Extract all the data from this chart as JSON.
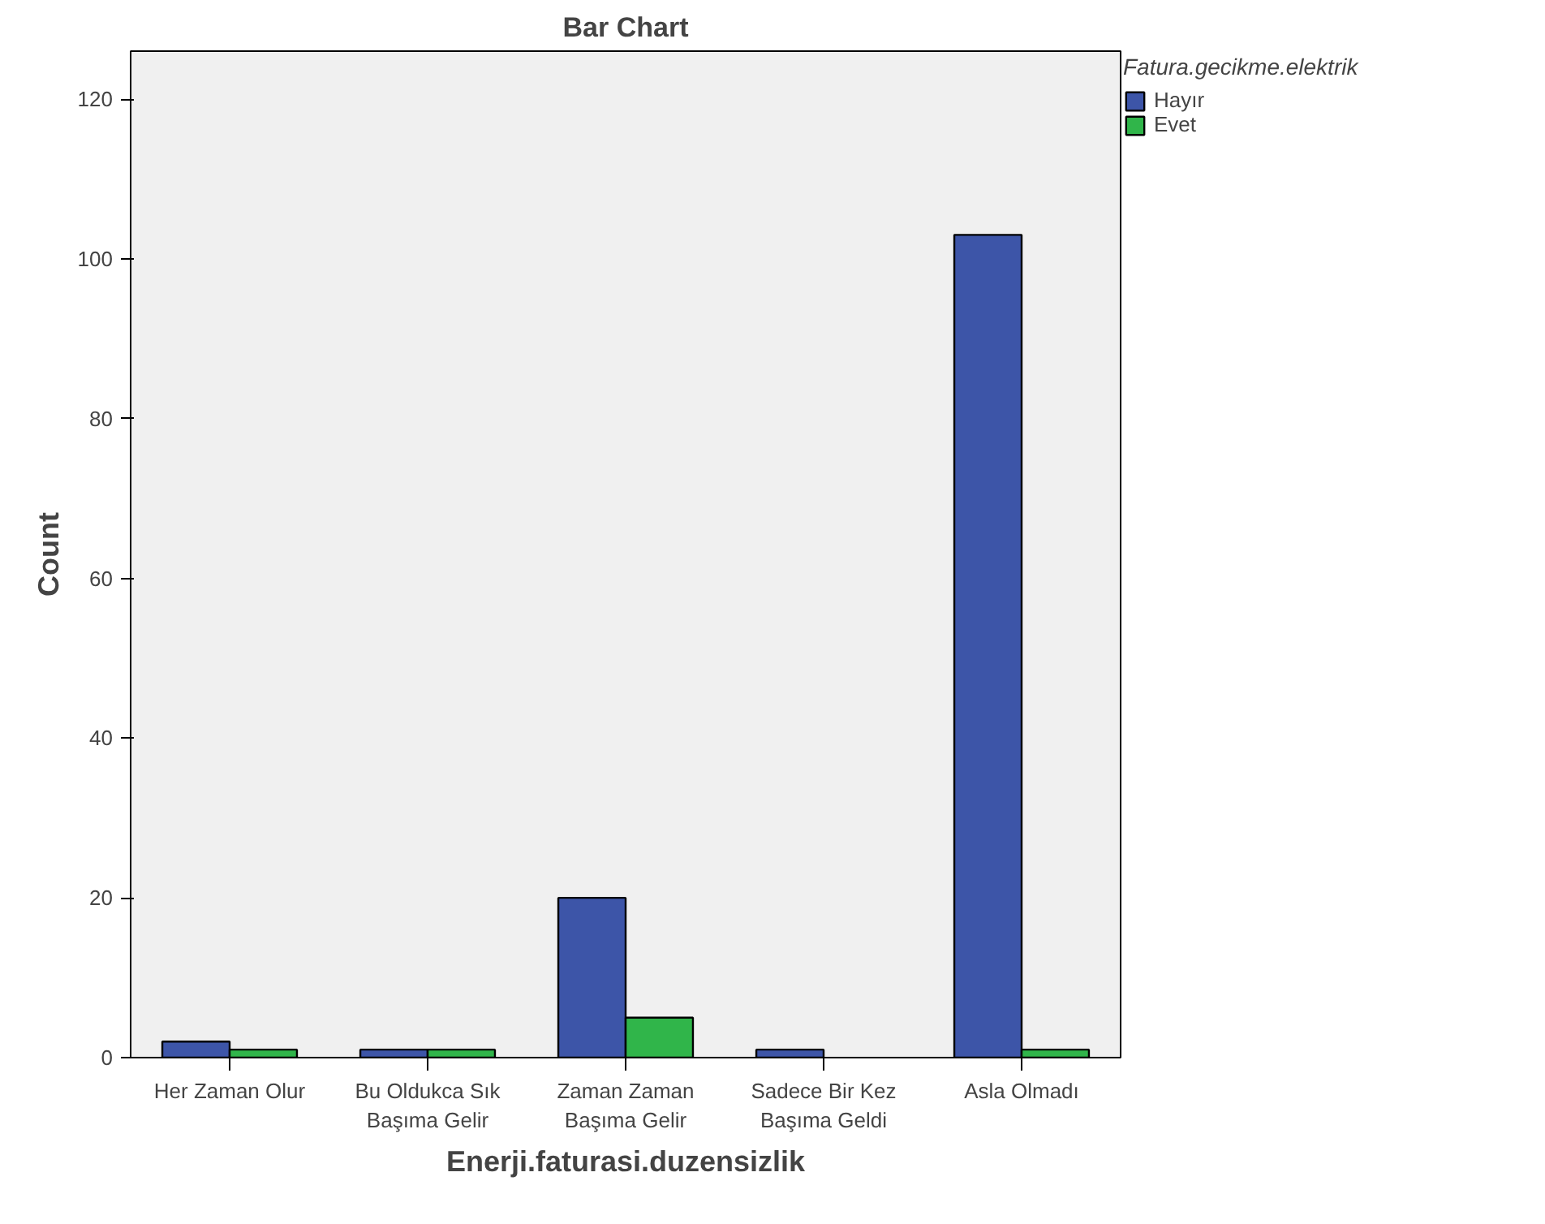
{
  "chart_data": {
    "type": "bar",
    "title": "Bar Chart",
    "xlabel": "Enerji.faturasi.duzensizlik",
    "ylabel": "Count",
    "legend_title": "Fatura.gecikme.elektrik",
    "categories": [
      "Her Zaman Olur",
      "Bu Oldukca Sık\nBaşıma Gelir",
      "Zaman Zaman\nBaşıma Gelir",
      "Sadece Bir Kez\nBaşıma Geldi",
      "Asla Olmadı"
    ],
    "series": [
      {
        "name": "Hayır",
        "color": "#3d55a8",
        "values": [
          2,
          1,
          20,
          1,
          103
        ]
      },
      {
        "name": "Evet",
        "color": "#30b54a",
        "values": [
          1,
          1,
          5,
          null,
          1
        ]
      }
    ],
    "ylim": [
      0,
      126
    ],
    "yticks": [
      0,
      20,
      40,
      60,
      80,
      100,
      120
    ],
    "grid": false,
    "legend": "top right"
  }
}
